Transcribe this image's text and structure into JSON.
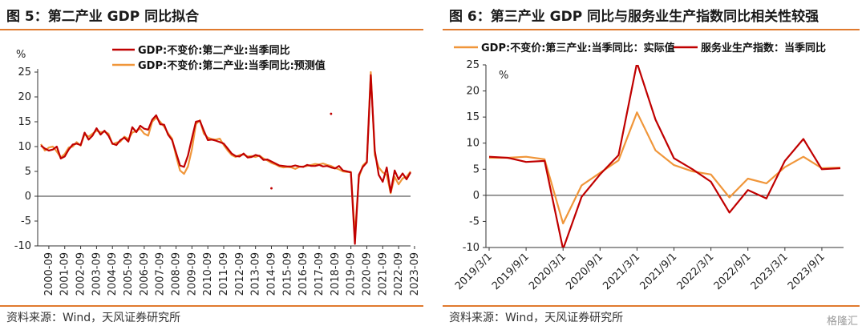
{
  "panels": [
    {
      "title": "图 5：第二产业 GDP 同比拟合",
      "source": "资料来源：Wind，天风证券研究所"
    },
    {
      "title": "图 6：第三产业 GDP 同比与服务业生产指数同比相关性较强",
      "source": "资料来源：Wind，天风证券研究所"
    }
  ],
  "watermark": "格隆汇",
  "colors": {
    "dark_red": "#C00000",
    "orange": "#F0963A",
    "rule": "#E07A2E"
  },
  "chart_data": [
    {
      "type": "line",
      "ylabel": "%",
      "ylim": [
        -10,
        25
      ],
      "yticks": [
        -10,
        -5,
        0,
        5,
        10,
        15,
        20,
        25
      ],
      "grid": false,
      "legend": "top-left",
      "xticks": [
        "2000-09",
        "2001-09",
        "2002-09",
        "2003-09",
        "2004-09",
        "2005-09",
        "2006-09",
        "2007-09",
        "2008-09",
        "2009-09",
        "2010-09",
        "2011-09",
        "2012-09",
        "2013-09",
        "2014-09",
        "2015-09",
        "2016-09",
        "2017-09",
        "2018-09",
        "2019-09",
        "2020-09",
        "2021-09",
        "2022-09",
        "2023-09"
      ],
      "x_start": "2000-03",
      "x_step": "quarter",
      "series": [
        {
          "name": "GDP:不变价:第二产业:当季同比",
          "color": "#C00000",
          "values": [
            10.2,
            9.6,
            9.2,
            9.4,
            10.0,
            7.6,
            8.0,
            9.4,
            10.4,
            10.6,
            10.3,
            12.8,
            11.4,
            12.2,
            13.7,
            12.4,
            13.2,
            12.2,
            10.6,
            10.3,
            11.3,
            11.8,
            11.0,
            13.9,
            12.9,
            14.2,
            13.6,
            13.4,
            15.4,
            16.3,
            14.5,
            14.4,
            12.4,
            11.3,
            8.8,
            6.2,
            5.9,
            8.2,
            11.7,
            15.0,
            15.2,
            13.2,
            11.3,
            11.4,
            11.2,
            10.9,
            10.6,
            9.6,
            8.6,
            8.1,
            8.0,
            8.6,
            7.8,
            7.9,
            8.3,
            8.1,
            7.3,
            7.4,
            7.0,
            6.6,
            6.2,
            6.1,
            6.0,
            6.0,
            6.2,
            6.0,
            5.9,
            6.3,
            6.1,
            6.1,
            6.3,
            6.0,
            6.1,
            5.8,
            5.6,
            6.1,
            5.2,
            5.0,
            4.8,
            -9.6,
            4.3,
            5.9,
            6.8,
            24.4,
            9.2,
            4.3,
            2.9,
            5.8,
            0.8,
            5.2,
            3.4,
            4.6,
            3.4,
            4.8
          ],
          "outliers": [
            {
              "x": "2014-09",
              "y": 1.6
            },
            {
              "x": "2018-06",
              "y": 16.6
            }
          ]
        },
        {
          "name": "GDP:不变价:第二产业:当季同比:预测值",
          "color": "#F0963A",
          "values": [
            10.5,
            9.2,
            9.8,
            10.0,
            9.0,
            7.8,
            8.5,
            9.8,
            10.0,
            10.9,
            10.2,
            12.5,
            12.0,
            12.6,
            13.2,
            12.9,
            13.0,
            12.6,
            10.5,
            10.8,
            11.0,
            12.0,
            11.5,
            12.8,
            13.2,
            13.6,
            12.6,
            12.2,
            15.0,
            15.8,
            15.0,
            14.0,
            12.7,
            11.6,
            8.2,
            5.2,
            4.5,
            6.0,
            9.5,
            14.5,
            15.3,
            12.6,
            11.8,
            11.5,
            11.4,
            11.6,
            10.3,
            9.2,
            8.3,
            7.9,
            8.3,
            8.4,
            8.0,
            8.1,
            7.9,
            8.2,
            7.6,
            7.2,
            6.7,
            6.4,
            6.0,
            5.8,
            5.9,
            5.8,
            5.5,
            5.9,
            6.0,
            6.1,
            6.3,
            6.5,
            6.4,
            6.6,
            6.3,
            6.1,
            5.7,
            5.4,
            5.0,
            4.9,
            4.9,
            -7.8,
            3.8,
            6.2,
            7.0,
            25.0,
            8.3,
            5.8,
            4.8,
            4.3,
            0.6,
            3.9,
            2.4,
            3.6,
            3.9,
            5.0
          ]
        }
      ]
    },
    {
      "type": "line",
      "ylabel": "%",
      "ylim": [
        -10,
        25
      ],
      "yticks": [
        -10,
        -5,
        0,
        5,
        10,
        15,
        20,
        25
      ],
      "grid": false,
      "legend": "top",
      "xticks": [
        "2019/3/1",
        "2019/9/1",
        "2020/3/1",
        "2020/9/1",
        "2021/3/1",
        "2021/9/1",
        "2022/3/1",
        "2022/9/1",
        "2023/3/1",
        "2023/9/1"
      ],
      "x": [
        "2019/3/1",
        "2019/6/1",
        "2019/9/1",
        "2019/12/1",
        "2020/3/1",
        "2020/6/1",
        "2020/9/1",
        "2020/12/1",
        "2021/3/1",
        "2021/6/1",
        "2021/9/1",
        "2021/12/1",
        "2022/3/1",
        "2022/6/1",
        "2022/9/1",
        "2022/12/1",
        "2023/3/1",
        "2023/6/1",
        "2023/9/1",
        "2023/12/1"
      ],
      "series": [
        {
          "name": "GDP:不变价:第三产业:当季同比：实际值",
          "color": "#F0963A",
          "values": [
            7.2,
            7.2,
            7.4,
            6.9,
            -5.4,
            1.9,
            4.3,
            6.7,
            15.9,
            8.6,
            5.8,
            4.6,
            4.0,
            -0.4,
            3.2,
            2.3,
            5.4,
            7.4,
            5.2,
            5.3
          ]
        },
        {
          "name": "服务业生产指数：当季同比",
          "color": "#C00000",
          "values": [
            7.4,
            7.2,
            6.4,
            6.6,
            -10.3,
            -0.3,
            4.0,
            7.7,
            25.4,
            14.5,
            7.1,
            5.0,
            2.6,
            -3.3,
            1.0,
            -0.6,
            6.6,
            10.8,
            5.0,
            5.2
          ]
        }
      ]
    }
  ]
}
